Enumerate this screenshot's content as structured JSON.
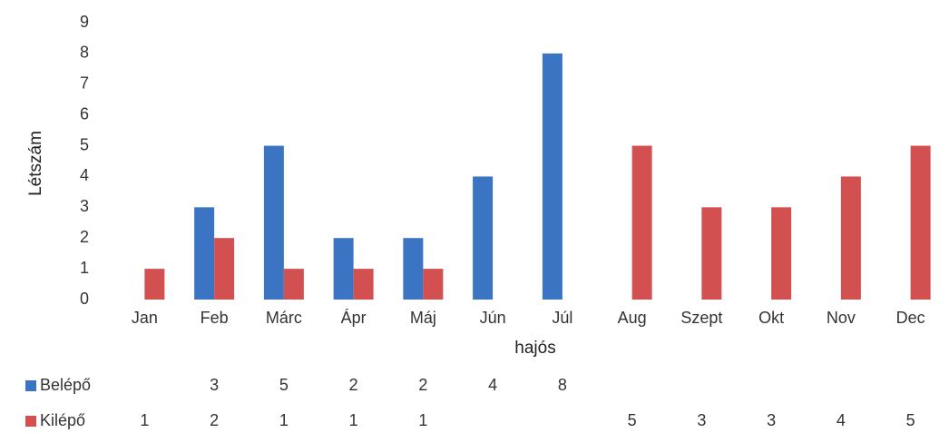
{
  "chart_data": {
    "type": "bar",
    "categories": [
      "Jan",
      "Feb",
      "Márc",
      "Ápr",
      "Máj",
      "Jún",
      "Júl",
      "Aug",
      "Szept",
      "Okt",
      "Nov",
      "Dec"
    ],
    "series": [
      {
        "name": "Belépő",
        "color": "#3b74c3",
        "values": [
          null,
          3,
          5,
          2,
          2,
          4,
          8,
          null,
          null,
          null,
          null,
          null
        ]
      },
      {
        "name": "Kilépő",
        "color": "#d2504f",
        "values": [
          1,
          2,
          1,
          1,
          1,
          null,
          null,
          5,
          3,
          3,
          4,
          5
        ]
      }
    ],
    "xlabel": "hajós",
    "ylabel": "Létszám",
    "ylim": [
      0,
      9
    ],
    "yticks": [
      0,
      1,
      2,
      3,
      4,
      5,
      6,
      7,
      8,
      9
    ],
    "grid": false,
    "data_table": true
  }
}
